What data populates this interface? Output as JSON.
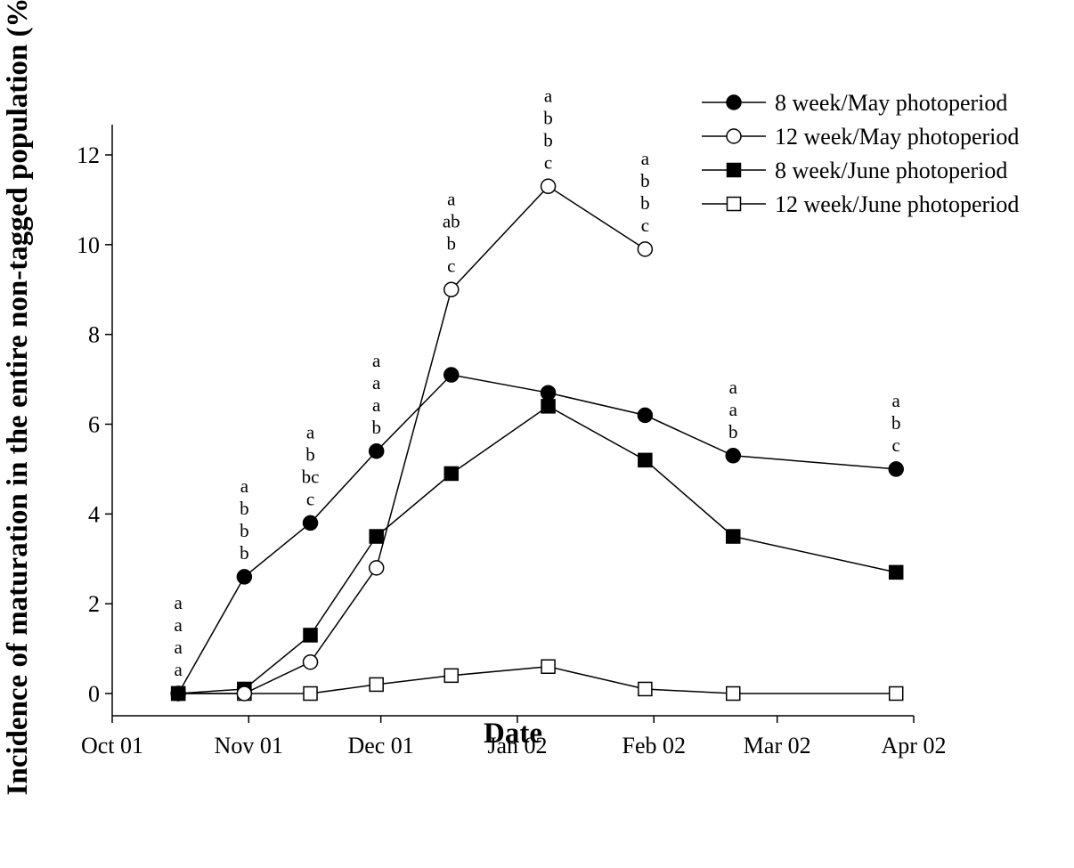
{
  "chart_data": {
    "type": "line",
    "title": "",
    "xlabel": "Date",
    "ylabel": "Incidence of maturation in the entire non-tagged population (%)",
    "x_tick_labels": [
      "Oct 01",
      "Nov 01",
      "Dec 01",
      "Jan 02",
      "Feb 02",
      "Mar 02",
      "Apr 02"
    ],
    "x_tick_dates": [
      "2001-10-01",
      "2001-11-01",
      "2001-12-01",
      "2002-01-01",
      "2002-02-01",
      "2002-03-01",
      "2002-04-01"
    ],
    "xlim": [
      "2001-10-01",
      "2002-04-01"
    ],
    "ylim": [
      -0.5,
      12
    ],
    "y_ticks": [
      0,
      2,
      4,
      6,
      8,
      10,
      12
    ],
    "grid": false,
    "legend_position": "top-right",
    "series": [
      {
        "name": "8 week/May photoperiod",
        "marker": "circle",
        "fill": "#000000",
        "x": [
          "2001-10-16",
          "2001-10-31",
          "2001-11-15",
          "2001-11-30",
          "2001-12-17",
          "2002-01-08",
          "2002-01-30",
          "2002-02-19",
          "2002-03-28"
        ],
        "y": [
          0,
          2.6,
          3.8,
          5.4,
          7.1,
          6.7,
          6.2,
          5.3,
          5.0
        ]
      },
      {
        "name": "12 week/May photoperiod",
        "marker": "circle",
        "fill": "#ffffff",
        "x": [
          "2001-10-16",
          "2001-10-31",
          "2001-11-15",
          "2001-11-30",
          "2001-12-17",
          "2002-01-08",
          "2002-01-30"
        ],
        "y": [
          0,
          0,
          0.7,
          2.8,
          9.0,
          11.3,
          9.9
        ]
      },
      {
        "name": "8 week/June photoperiod",
        "marker": "square",
        "fill": "#000000",
        "x": [
          "2001-10-16",
          "2001-10-31",
          "2001-11-15",
          "2001-11-30",
          "2001-12-17",
          "2002-01-08",
          "2002-01-30",
          "2002-02-19",
          "2002-03-28"
        ],
        "y": [
          0,
          0.1,
          1.3,
          3.5,
          4.9,
          6.4,
          5.2,
          3.5,
          2.7
        ]
      },
      {
        "name": "12 week/June photoperiod",
        "marker": "square",
        "fill": "#ffffff",
        "x": [
          "2001-10-16",
          "2001-10-31",
          "2001-11-15",
          "2001-11-30",
          "2001-12-17",
          "2002-01-08",
          "2002-01-30",
          "2002-02-19",
          "2002-03-28"
        ],
        "y": [
          0,
          0,
          0,
          0.2,
          0.4,
          0.6,
          0.1,
          0,
          0
        ]
      }
    ],
    "annotations": [
      {
        "x": "2001-10-16",
        "above_y": 0,
        "lines": [
          "a",
          "a",
          "a",
          "a"
        ]
      },
      {
        "x": "2001-10-31",
        "above_y": 2.6,
        "lines": [
          "a",
          "b",
          "b",
          "b"
        ]
      },
      {
        "x": "2001-11-15",
        "above_y": 3.8,
        "lines": [
          "a",
          "b",
          "bc",
          "c"
        ]
      },
      {
        "x": "2001-11-30",
        "above_y": 5.4,
        "lines": [
          "a",
          "a",
          "a",
          "b"
        ]
      },
      {
        "x": "2001-12-17",
        "above_y": 9.0,
        "lines": [
          "a",
          "ab",
          "b",
          "c"
        ]
      },
      {
        "x": "2002-01-08",
        "above_y": 11.3,
        "lines": [
          "a",
          "b",
          "b",
          "c"
        ]
      },
      {
        "x": "2002-01-30",
        "above_y": 9.9,
        "lines": [
          "a",
          "b",
          "b",
          "c"
        ]
      },
      {
        "x": "2002-02-19",
        "above_y": 5.3,
        "lines": [
          "a",
          "a",
          "b"
        ]
      },
      {
        "x": "2002-03-28",
        "above_y": 5.0,
        "lines": [
          "a",
          "b",
          "c"
        ]
      }
    ]
  }
}
